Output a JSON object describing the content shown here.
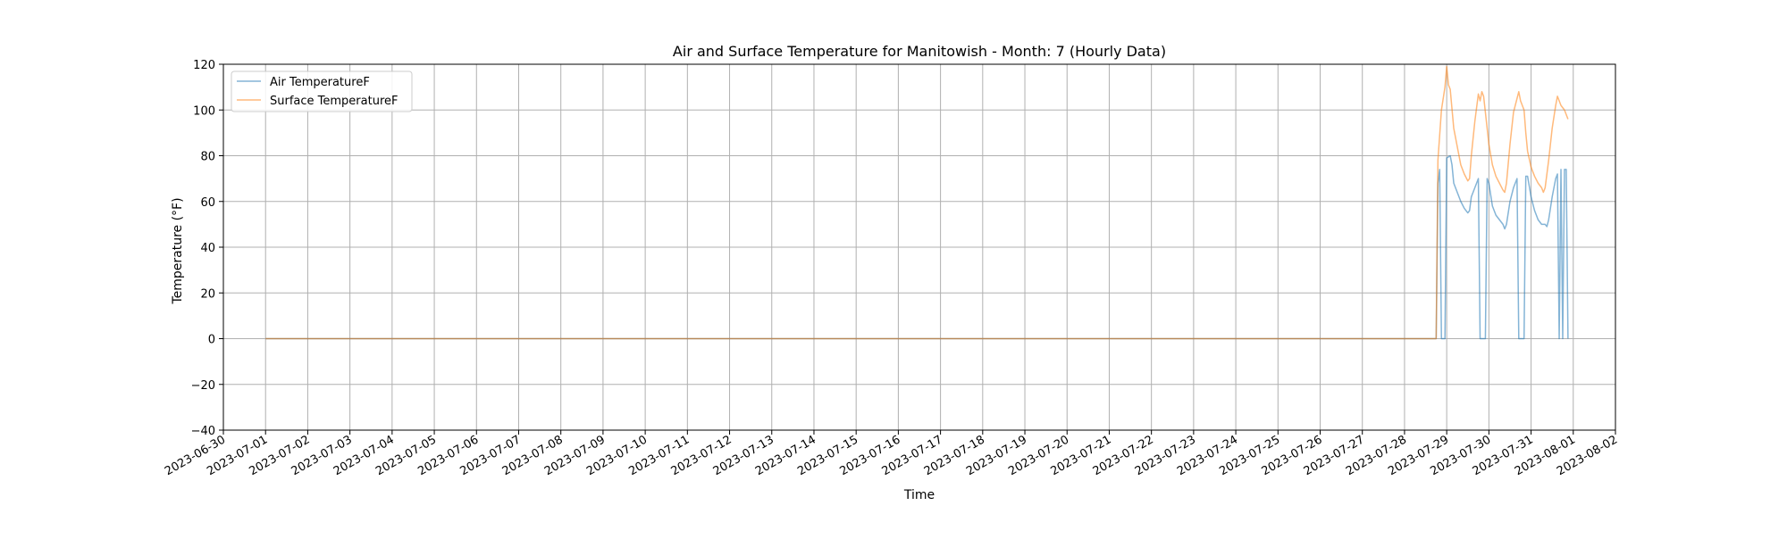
{
  "chart_data": {
    "type": "line",
    "title": "Air and Surface Temperature for Manitowish - Month: 7 (Hourly Data)",
    "xlabel": "Time",
    "ylabel": "Temperature (°F)",
    "x_axis_type": "date",
    "xlim": [
      "2023-06-30T00:00",
      "2023-08-02T00:00"
    ],
    "ylim": [
      -40,
      120
    ],
    "yticks": [
      -40,
      -20,
      0,
      20,
      40,
      60,
      80,
      100,
      120
    ],
    "xtick_labels": [
      "2023-06-30",
      "2023-07-01",
      "2023-07-02",
      "2023-07-03",
      "2023-07-04",
      "2023-07-05",
      "2023-07-06",
      "2023-07-07",
      "2023-07-08",
      "2023-07-09",
      "2023-07-10",
      "2023-07-11",
      "2023-07-12",
      "2023-07-13",
      "2023-07-14",
      "2023-07-15",
      "2023-07-16",
      "2023-07-17",
      "2023-07-18",
      "2023-07-19",
      "2023-07-20",
      "2023-07-21",
      "2023-07-22",
      "2023-07-23",
      "2023-07-24",
      "2023-07-25",
      "2023-07-26",
      "2023-07-27",
      "2023-07-28",
      "2023-07-29",
      "2023-07-30",
      "2023-07-31",
      "2023-08-01",
      "2023-08-02"
    ],
    "grid": true,
    "legend_position": "top-left",
    "series": [
      {
        "name": "Air TemperatureF",
        "color": "#1f77b4",
        "points": [
          [
            "2023-07-01T00:00",
            0
          ],
          [
            "2023-07-28T18:00",
            0
          ],
          [
            "2023-07-28T19:00",
            68
          ],
          [
            "2023-07-28T20:00",
            74
          ],
          [
            "2023-07-28T21:00",
            0
          ],
          [
            "2023-07-28T23:00",
            0
          ],
          [
            "2023-07-29T00:00",
            79
          ],
          [
            "2023-07-29T02:00",
            80
          ],
          [
            "2023-07-29T03:00",
            76
          ],
          [
            "2023-07-29T04:00",
            68
          ],
          [
            "2023-07-29T06:00",
            64
          ],
          [
            "2023-07-29T08:00",
            60
          ],
          [
            "2023-07-29T10:00",
            57
          ],
          [
            "2023-07-29T12:00",
            55
          ],
          [
            "2023-07-29T13:00",
            56
          ],
          [
            "2023-07-29T14:00",
            62
          ],
          [
            "2023-07-29T16:00",
            66
          ],
          [
            "2023-07-29T18:00",
            70
          ],
          [
            "2023-07-29T19:00",
            0
          ],
          [
            "2023-07-29T22:00",
            0
          ],
          [
            "2023-07-29T23:00",
            70
          ],
          [
            "2023-07-30T00:00",
            68
          ],
          [
            "2023-07-30T02:00",
            58
          ],
          [
            "2023-07-30T04:00",
            54
          ],
          [
            "2023-07-30T06:00",
            52
          ],
          [
            "2023-07-30T08:00",
            50
          ],
          [
            "2023-07-30T09:00",
            48
          ],
          [
            "2023-07-30T10:00",
            50
          ],
          [
            "2023-07-30T12:00",
            60
          ],
          [
            "2023-07-30T14:00",
            66
          ],
          [
            "2023-07-30T16:00",
            70
          ],
          [
            "2023-07-30T17:00",
            0
          ],
          [
            "2023-07-30T20:00",
            0
          ],
          [
            "2023-07-30T21:00",
            71
          ],
          [
            "2023-07-30T22:00",
            71
          ],
          [
            "2023-07-31T00:00",
            62
          ],
          [
            "2023-07-31T02:00",
            56
          ],
          [
            "2023-07-31T04:00",
            52
          ],
          [
            "2023-07-31T06:00",
            50
          ],
          [
            "2023-07-31T08:00",
            50
          ],
          [
            "2023-07-31T09:00",
            49
          ],
          [
            "2023-07-31T10:00",
            52
          ],
          [
            "2023-07-31T12:00",
            62
          ],
          [
            "2023-07-31T14:00",
            70
          ],
          [
            "2023-07-31T15:00",
            72
          ],
          [
            "2023-07-31T16:00",
            0
          ],
          [
            "2023-07-31T17:00",
            74
          ],
          [
            "2023-07-31T18:00",
            0
          ],
          [
            "2023-07-31T19:00",
            74
          ],
          [
            "2023-07-31T20:00",
            74
          ],
          [
            "2023-07-31T21:00",
            0
          ]
        ]
      },
      {
        "name": "Surface TemperatureF",
        "color": "#ff7f0e",
        "points": [
          [
            "2023-07-01T00:00",
            0
          ],
          [
            "2023-07-28T18:00",
            0
          ],
          [
            "2023-07-28T19:00",
            78
          ],
          [
            "2023-07-28T21:00",
            100
          ],
          [
            "2023-07-28T23:00",
            110
          ],
          [
            "2023-07-29T00:00",
            119
          ],
          [
            "2023-07-29T01:00",
            111
          ],
          [
            "2023-07-29T02:00",
            109
          ],
          [
            "2023-07-29T04:00",
            92
          ],
          [
            "2023-07-29T06:00",
            84
          ],
          [
            "2023-07-29T08:00",
            76
          ],
          [
            "2023-07-29T10:00",
            72
          ],
          [
            "2023-07-29T12:00",
            69
          ],
          [
            "2023-07-29T13:00",
            70
          ],
          [
            "2023-07-29T14:00",
            80
          ],
          [
            "2023-07-29T16:00",
            95
          ],
          [
            "2023-07-29T18:00",
            107
          ],
          [
            "2023-07-29T19:00",
            104
          ],
          [
            "2023-07-29T20:00",
            108
          ],
          [
            "2023-07-29T21:00",
            106
          ],
          [
            "2023-07-29T22:00",
            99
          ],
          [
            "2023-07-30T00:00",
            85
          ],
          [
            "2023-07-30T02:00",
            76
          ],
          [
            "2023-07-30T04:00",
            71
          ],
          [
            "2023-07-30T06:00",
            68
          ],
          [
            "2023-07-30T08:00",
            65
          ],
          [
            "2023-07-30T09:00",
            64
          ],
          [
            "2023-07-30T10:00",
            68
          ],
          [
            "2023-07-30T12:00",
            85
          ],
          [
            "2023-07-30T14:00",
            99
          ],
          [
            "2023-07-30T16:00",
            105
          ],
          [
            "2023-07-30T17:00",
            108
          ],
          [
            "2023-07-30T18:00",
            104
          ],
          [
            "2023-07-30T20:00",
            100
          ],
          [
            "2023-07-30T21:00",
            90
          ],
          [
            "2023-07-30T22:00",
            82
          ],
          [
            "2023-07-31T00:00",
            75
          ],
          [
            "2023-07-31T02:00",
            71
          ],
          [
            "2023-07-31T04:00",
            68
          ],
          [
            "2023-07-31T06:00",
            66
          ],
          [
            "2023-07-31T07:00",
            64
          ],
          [
            "2023-07-31T08:00",
            66
          ],
          [
            "2023-07-31T10:00",
            78
          ],
          [
            "2023-07-31T12:00",
            92
          ],
          [
            "2023-07-31T14:00",
            102
          ],
          [
            "2023-07-31T15:00",
            106
          ],
          [
            "2023-07-31T17:00",
            102
          ],
          [
            "2023-07-31T19:00",
            100
          ],
          [
            "2023-07-31T20:00",
            98
          ],
          [
            "2023-07-31T21:00",
            96
          ]
        ]
      }
    ]
  }
}
